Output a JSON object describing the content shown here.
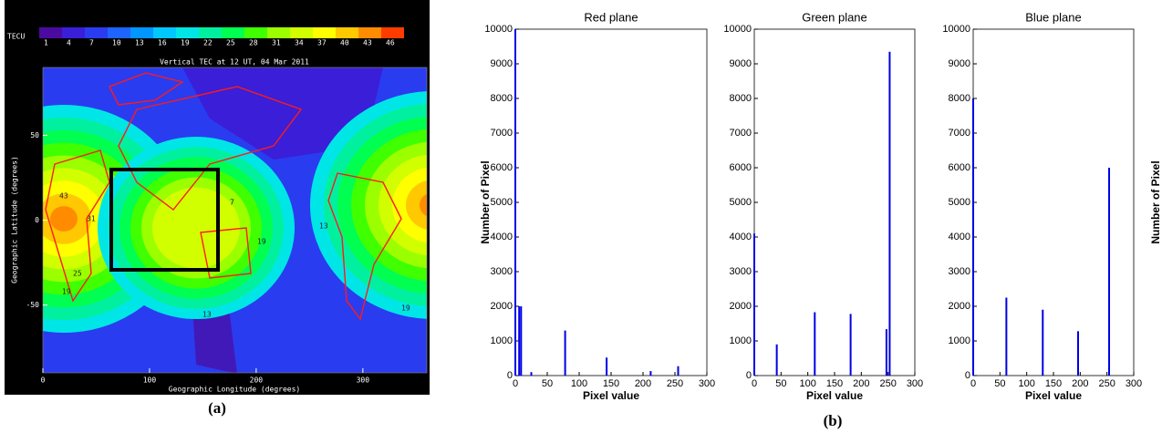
{
  "map": {
    "title": "Vertical TEC at 12 UT, 04 Mar 2011",
    "colorbar": {
      "label": "TECU",
      "values": [
        1,
        4,
        7,
        10,
        13,
        16,
        19,
        22,
        25,
        28,
        31,
        34,
        37,
        40,
        43,
        46
      ],
      "colors": [
        "#4b0aa0",
        "#3a1ed8",
        "#2a3cf0",
        "#1e64ff",
        "#0096ff",
        "#00c8ff",
        "#00e6e6",
        "#00f0a0",
        "#00ff50",
        "#40ff00",
        "#9bff00",
        "#d2ff00",
        "#ffff00",
        "#ffc800",
        "#ff8c00",
        "#ff3c00"
      ]
    },
    "xlabel": "Geographic Longitude (degrees)",
    "ylabel": "Geographic Latitude (degrees)",
    "xlim": [
      0,
      360
    ],
    "ylim": [
      -90,
      90
    ],
    "xticks": [
      0,
      100,
      200,
      300
    ],
    "yticks": [
      50,
      0,
      -50
    ],
    "contour_labels": [
      "43",
      "19",
      "25",
      "31",
      "7",
      "13",
      "19",
      "13",
      "19"
    ],
    "panel_label": "(a)"
  },
  "panel_label_b": "(b)",
  "chart_data": [
    {
      "type": "bar",
      "title": "Red plane",
      "xlabel": "Pixel value",
      "ylabel": "Number of Pixel",
      "ylabel_side": "left",
      "color": "#0000e6",
      "x": [
        0,
        6,
        9,
        25,
        78,
        143,
        212,
        255
      ],
      "values": [
        10000,
        2000,
        2000,
        100,
        1300,
        520,
        130,
        270
      ],
      "xlim": [
        0,
        300
      ],
      "ylim": [
        0,
        10000
      ],
      "xticks": [
        0,
        50,
        100,
        150,
        200,
        250,
        300
      ],
      "yticks": [
        0,
        1000,
        2000,
        3000,
        4000,
        5000,
        6000,
        7000,
        8000,
        9000,
        10000
      ]
    },
    {
      "type": "bar",
      "title": "Green plane",
      "xlabel": "Pixel value",
      "color": "#0000e6",
      "x": [
        0,
        42,
        113,
        180,
        247,
        253
      ],
      "values": [
        4100,
        900,
        1830,
        1780,
        1340,
        9350
      ],
      "xlim": [
        0,
        300
      ],
      "ylim": [
        0,
        10000
      ],
      "xticks": [
        0,
        50,
        100,
        150,
        200,
        250,
        300
      ],
      "yticks": [
        0,
        1000,
        2000,
        3000,
        4000,
        5000,
        6000,
        7000,
        8000,
        9000,
        10000
      ]
    },
    {
      "type": "bar",
      "title": "Blue plane",
      "xlabel": "Pixel value",
      "ylabel": "Number of Pixel",
      "ylabel_side": "right",
      "color": "#0000e6",
      "x": [
        0,
        62,
        130,
        196,
        254
      ],
      "values": [
        8000,
        2250,
        1900,
        1280,
        6000
      ],
      "xlim": [
        0,
        300
      ],
      "ylim": [
        0,
        10000
      ],
      "xticks": [
        0,
        50,
        100,
        150,
        200,
        250,
        300
      ],
      "yticks": [
        0,
        1000,
        2000,
        3000,
        4000,
        5000,
        6000,
        7000,
        8000,
        9000,
        10000
      ]
    }
  ]
}
